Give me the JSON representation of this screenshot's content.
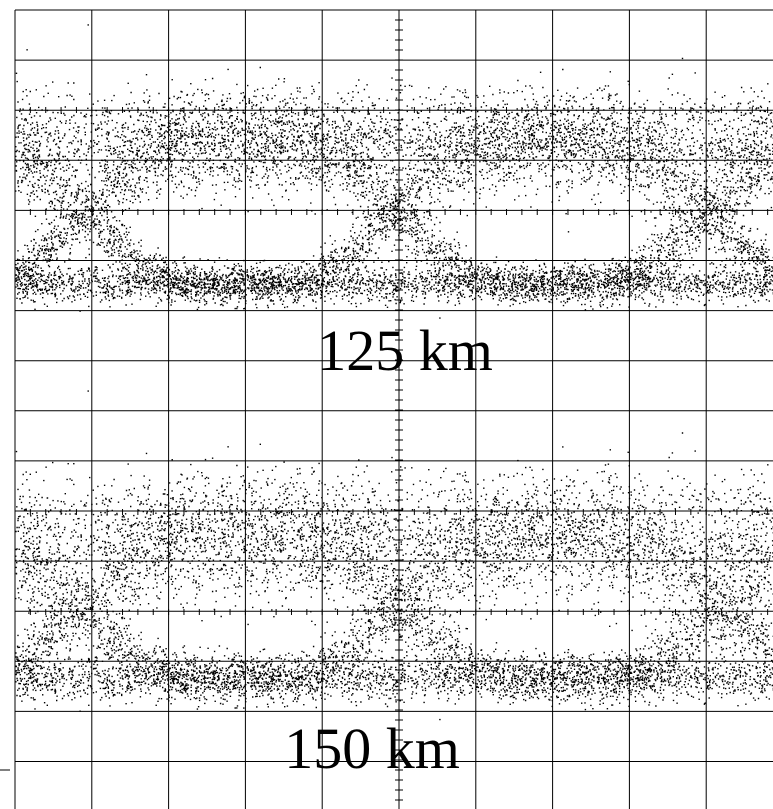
{
  "labels": [
    "125 km",
    "150 km"
  ]
}
